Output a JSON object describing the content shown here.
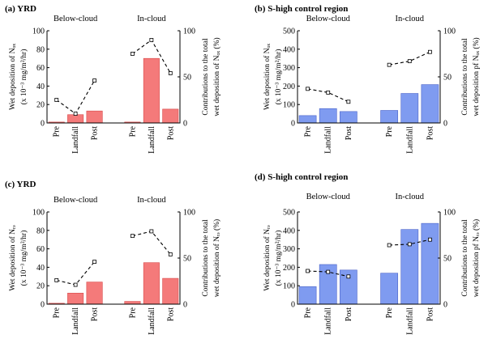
{
  "chart_data": [
    {
      "type": "bar",
      "title": "(a) YRD",
      "groups": [
        "Below-cloud",
        "In-cloud"
      ],
      "categories": [
        "Pre",
        "Landfall",
        "Post"
      ],
      "ylabel_line1": "Wet deposition of Nₒₓ",
      "ylabel_line2": "(x 10⁻³ mg/m²/hr)",
      "y2label_line1": "Contributions to the total",
      "y2label_line2": "wet deposition of Nₒₓ (%)",
      "ylim": [
        0,
        100
      ],
      "yticks": [
        0,
        20,
        40,
        60,
        80,
        100
      ],
      "y2lim": [
        0,
        100
      ],
      "y2ticks": [
        0,
        50,
        100
      ],
      "bar_color": "#f47a7a",
      "bar_edge": "#d84848",
      "series": [
        {
          "name": "Below-cloud",
          "values": [
            1,
            9,
            13
          ],
          "pct": [
            25,
            10,
            46
          ]
        },
        {
          "name": "In-cloud",
          "values": [
            1,
            70,
            15
          ],
          "pct": [
            75,
            90,
            54
          ]
        }
      ]
    },
    {
      "type": "bar",
      "title": "(b) S-high control region",
      "groups": [
        "Below-cloud",
        "In-cloud"
      ],
      "categories": [
        "Pre",
        "Landfall",
        "Post"
      ],
      "ylabel_line1": "Wet deposition of Nₒₓ",
      "ylabel_line2": "(x 10⁻³ mg/m²/hr)",
      "y2label_line1": "Contributions to the total",
      "y2label_line2": "wet deposition pf Nₒₓ (%)",
      "ylim": [
        0,
        500
      ],
      "yticks": [
        0,
        100,
        200,
        300,
        400,
        500
      ],
      "y2lim": [
        0,
        100
      ],
      "y2ticks": [
        0,
        50,
        100
      ],
      "bar_color": "#7f9bf0",
      "bar_edge": "#4b63c8",
      "series": [
        {
          "name": "Below-cloud",
          "values": [
            40,
            78,
            62
          ],
          "pct": [
            37,
            33,
            23
          ]
        },
        {
          "name": "In-cloud",
          "values": [
            68,
            160,
            208
          ],
          "pct": [
            63,
            67,
            77
          ]
        }
      ]
    },
    {
      "type": "bar",
      "title": "(c) YRD",
      "groups": [
        "Below-cloud",
        "In-cloud"
      ],
      "categories": [
        "Pre",
        "Landfall",
        "Post"
      ],
      "ylabel_line1": "Wet deposition of Nᵣₔ",
      "ylabel_line2": "(x 10⁻³ mg/m²/hr)",
      "y2label_line1": "Contributions to the total",
      "y2label_line2": "wet deposition of Nᵣₔ (%)",
      "ylim": [
        0,
        100
      ],
      "yticks": [
        0,
        20,
        40,
        60,
        80,
        100
      ],
      "y2lim": [
        0,
        100
      ],
      "y2ticks": [
        0,
        50,
        100
      ],
      "bar_color": "#f47a7a",
      "bar_edge": "#d84848",
      "series": [
        {
          "name": "Below-cloud",
          "values": [
            1,
            12,
            24
          ],
          "pct": [
            26,
            21,
            46
          ]
        },
        {
          "name": "In-cloud",
          "values": [
            3,
            45,
            28
          ],
          "pct": [
            74,
            79,
            54
          ]
        }
      ]
    },
    {
      "type": "bar",
      "title": "(d) S-high control region",
      "groups": [
        "Below-cloud",
        "In-cloud"
      ],
      "categories": [
        "Pre",
        "Landfall",
        "Post"
      ],
      "ylabel_line1": "Wet deposition of Nᵣₔ",
      "ylabel_line2": "(x 10⁻³ mg/m²/hr)",
      "y2label_line1": "Contributions to the total",
      "y2label_line2": "wet deposition pf Nᵣₔ (%)",
      "ylim": [
        0,
        500
      ],
      "yticks": [
        0,
        100,
        200,
        300,
        400,
        500
      ],
      "y2lim": [
        0,
        100
      ],
      "y2ticks": [
        0,
        50,
        100
      ],
      "bar_color": "#7f9bf0",
      "bar_edge": "#4b63c8",
      "series": [
        {
          "name": "Below-cloud",
          "values": [
            95,
            215,
            185
          ],
          "pct": [
            36,
            35,
            30
          ]
        },
        {
          "name": "In-cloud",
          "values": [
            168,
            405,
            438
          ],
          "pct": [
            64,
            65,
            70
          ]
        }
      ]
    }
  ]
}
